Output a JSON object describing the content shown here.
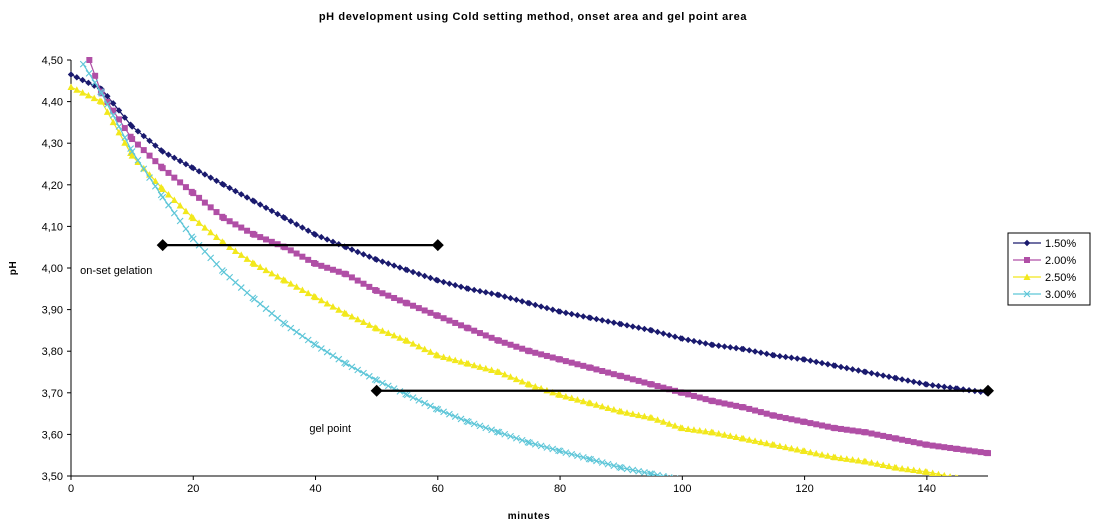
{
  "chart_data": {
    "type": "line",
    "title": "pH development using Cold setting method, onset area and gel point area",
    "xlabel": "minutes",
    "ylabel": "pH",
    "xlim": [
      0,
      150
    ],
    "ylim": [
      3.5,
      4.5
    ],
    "x_ticks": [
      "0",
      "20",
      "40",
      "60",
      "80",
      "100",
      "120",
      "140"
    ],
    "y_ticks": [
      "3,50",
      "3,60",
      "3,70",
      "3,80",
      "3,90",
      "4,00",
      "4,10",
      "4,20",
      "4,30",
      "4,40",
      "4,50"
    ],
    "grid": false,
    "legend_position": "right",
    "series": [
      {
        "name": "1.50%",
        "color": "#1a1a6e",
        "marker": "diamond",
        "x": [
          0,
          5,
          10,
          15,
          20,
          25,
          30,
          35,
          40,
          45,
          50,
          55,
          60,
          65,
          70,
          75,
          80,
          85,
          90,
          95,
          100,
          105,
          110,
          115,
          120,
          125,
          130,
          135,
          140,
          145,
          150
        ],
        "y": [
          4.465,
          4.43,
          4.34,
          4.28,
          4.24,
          4.2,
          4.16,
          4.12,
          4.08,
          4.05,
          4.02,
          3.995,
          3.97,
          3.95,
          3.935,
          3.915,
          3.895,
          3.88,
          3.865,
          3.85,
          3.83,
          3.815,
          3.805,
          3.79,
          3.78,
          3.765,
          3.75,
          3.735,
          3.72,
          3.71,
          3.7
        ]
      },
      {
        "name": "2.00%",
        "color": "#b04fa6",
        "marker": "square",
        "x": [
          3,
          5,
          10,
          15,
          20,
          25,
          30,
          35,
          40,
          45,
          50,
          55,
          60,
          65,
          70,
          75,
          80,
          85,
          90,
          95,
          100,
          105,
          110,
          115,
          120,
          125,
          130,
          135,
          140,
          145,
          150
        ],
        "y": [
          4.5,
          4.42,
          4.31,
          4.24,
          4.18,
          4.12,
          4.08,
          4.05,
          4.01,
          3.985,
          3.945,
          3.915,
          3.885,
          3.855,
          3.825,
          3.8,
          3.78,
          3.76,
          3.74,
          3.72,
          3.7,
          3.68,
          3.665,
          3.645,
          3.63,
          3.615,
          3.605,
          3.59,
          3.575,
          3.565,
          3.555
        ]
      },
      {
        "name": "2.50%",
        "color": "#f2e81c",
        "marker": "triangle",
        "x": [
          0,
          5,
          10,
          15,
          20,
          25,
          30,
          35,
          40,
          45,
          50,
          55,
          60,
          65,
          70,
          75,
          80,
          85,
          90,
          95,
          100,
          105,
          110,
          115,
          120,
          125,
          130,
          135,
          140,
          145
        ],
        "y": [
          4.435,
          4.4,
          4.27,
          4.19,
          4.12,
          4.06,
          4.01,
          3.97,
          3.93,
          3.89,
          3.855,
          3.825,
          3.79,
          3.77,
          3.75,
          3.72,
          3.695,
          3.675,
          3.655,
          3.64,
          3.615,
          3.605,
          3.59,
          3.575,
          3.56,
          3.545,
          3.535,
          3.52,
          3.51,
          3.495
        ]
      },
      {
        "name": "3.00%",
        "color": "#5ec6d8",
        "marker": "x",
        "x": [
          2,
          5,
          10,
          15,
          20,
          25,
          30,
          35,
          40,
          45,
          50,
          55,
          60,
          65,
          70,
          75,
          80,
          85,
          90,
          95,
          100
        ],
        "y": [
          4.49,
          4.42,
          4.28,
          4.17,
          4.07,
          3.99,
          3.925,
          3.865,
          3.815,
          3.77,
          3.73,
          3.695,
          3.66,
          3.63,
          3.605,
          3.58,
          3.56,
          3.54,
          3.52,
          3.505,
          3.49
        ]
      }
    ],
    "reference_lines": [
      {
        "x": [
          15,
          60
        ],
        "y": [
          4.055,
          4.055
        ],
        "color": "#000000"
      },
      {
        "x": [
          50,
          150
        ],
        "y": [
          3.705,
          3.705
        ],
        "color": "#000000"
      }
    ],
    "annotations": [
      {
        "text": "on-set gelation",
        "x": 1.5,
        "y": 3.995
      },
      {
        "text": "gel point",
        "x": 39,
        "y": 3.615
      }
    ]
  }
}
